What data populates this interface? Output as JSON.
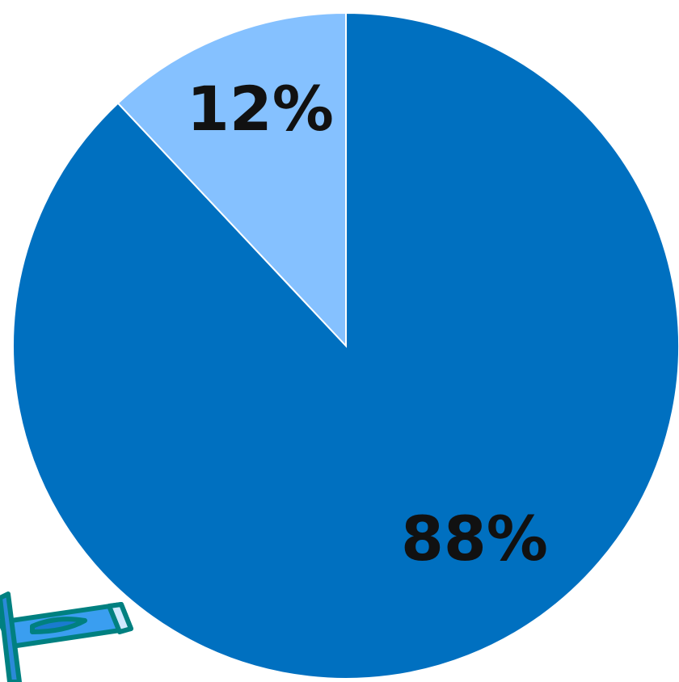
{
  "chart_data": {
    "type": "pie",
    "values": [
      88,
      12
    ],
    "value_labels": [
      "88%",
      "12%"
    ],
    "colors": [
      "#0070c0",
      "#85c1ff"
    ]
  }
}
